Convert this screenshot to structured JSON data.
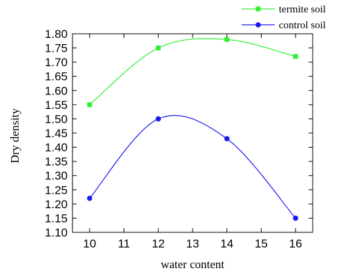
{
  "chart_data": {
    "type": "line",
    "xlabel": "water content",
    "ylabel": "Dry density",
    "xlim": [
      9.5,
      16.5
    ],
    "ylim": [
      1.1,
      1.8
    ],
    "xticks": [
      "10",
      "11",
      "12",
      "13",
      "14",
      "15",
      "16"
    ],
    "yticks": [
      "1.10",
      "1.15",
      "1.20",
      "1.25",
      "1.30",
      "1.35",
      "1.40",
      "1.45",
      "1.50",
      "1.55",
      "1.60",
      "1.65",
      "1.70",
      "1.75",
      "1.80"
    ],
    "grid": false,
    "legend_position": "top-right, outside plot",
    "x": [
      10,
      12,
      14,
      16
    ],
    "series": [
      {
        "name": "termite soil",
        "values": [
          1.55,
          1.75,
          1.78,
          1.72
        ],
        "color": "#33ee33",
        "marker": "square"
      },
      {
        "name": "control soil",
        "values": [
          1.22,
          1.5,
          1.43,
          1.15
        ],
        "color": "#1a1aee",
        "marker": "circle"
      }
    ]
  }
}
